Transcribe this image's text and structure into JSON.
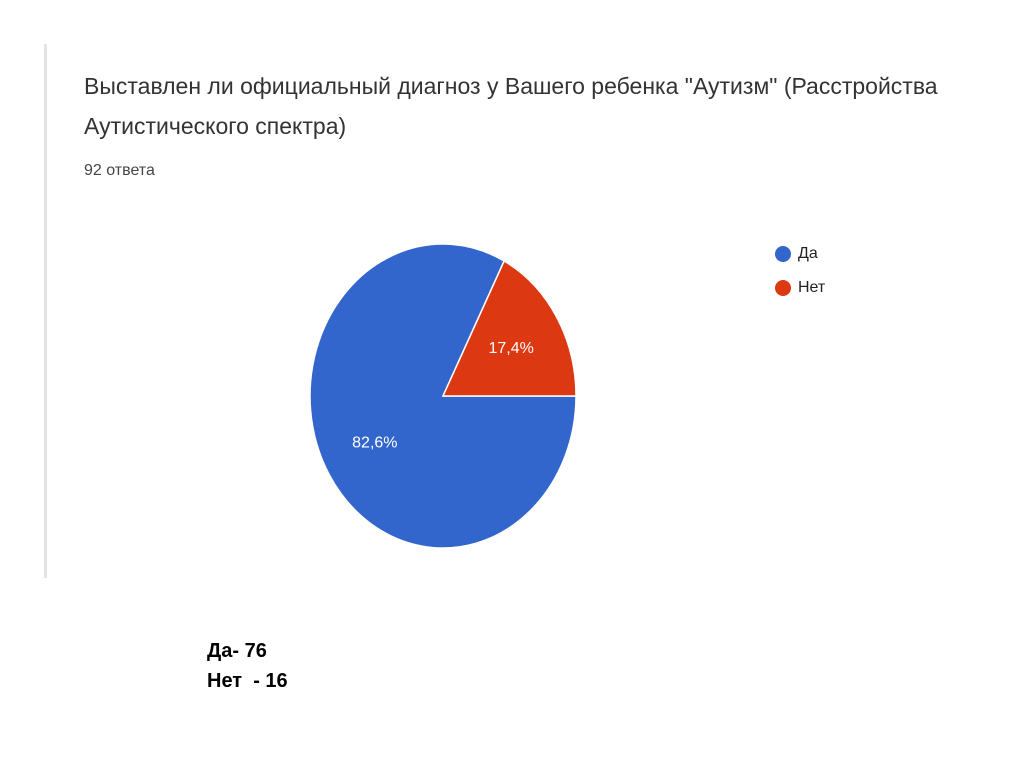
{
  "chart_data": {
    "type": "pie",
    "title": "Выставлен ли официальный диагноз у Вашего ребенка \"Аутизм\" (Расстройства Аутистического спектра)",
    "subtitle": "92 ответа",
    "categories": [
      "Да",
      "Нет"
    ],
    "values": [
      82.6,
      17.4
    ],
    "value_labels": [
      "82,6%",
      "17,4%"
    ],
    "colors": [
      "#3366cc",
      "#dc3912"
    ],
    "annotations": [
      "Да- 76",
      "Нет  - 16"
    ]
  }
}
